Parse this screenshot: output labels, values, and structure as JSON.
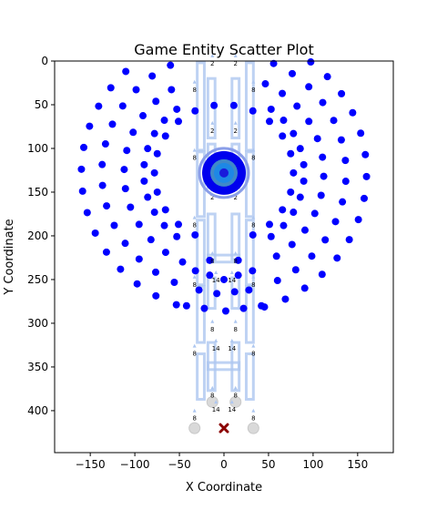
{
  "chart_data": {
    "type": "scatter",
    "title": "Game Entity Scatter Plot",
    "xlabel": "X Coordinate",
    "ylabel": "Y Coordinate",
    "xlim": [
      -190,
      190
    ],
    "ylim": [
      448,
      0
    ],
    "y_inverted": true,
    "x_ticks": [
      -150,
      -100,
      -50,
      0,
      50,
      100,
      150
    ],
    "y_ticks": [
      0,
      50,
      100,
      150,
      200,
      250,
      300,
      350,
      400
    ],
    "grid": false,
    "colors": {
      "entity": "#0000ff",
      "platform": "#aec7f0",
      "player_outer": "#8a9ee8",
      "player_fill": "#0000ee",
      "player_mid": "#3f88c8",
      "player_inner": "#1e88e5",
      "player_core": "#1a1adb",
      "ghost": "#d9d9d9",
      "cross": "#8b0000"
    },
    "rings": [
      {
        "center": [
          0,
          128
        ],
        "radius": 160,
        "count": 40,
        "start_angle": 1.5
      },
      {
        "center": [
          0,
          128
        ],
        "radius": 137,
        "count": 36,
        "start_angle": 4
      },
      {
        "center": [
          0,
          128
        ],
        "radius": 112,
        "count": 32,
        "start_angle": 2
      },
      {
        "center": [
          0,
          128
        ],
        "radius": 90,
        "count": 30,
        "start_angle": 6
      },
      {
        "center": [
          0,
          128
        ],
        "radius": 78,
        "count": 22,
        "start_angle": 0
      }
    ],
    "lower_dots": [
      {
        "x": -32,
        "y": 240
      },
      {
        "x": -16,
        "y": 245
      },
      {
        "x": 0,
        "y": 250
      },
      {
        "x": 16,
        "y": 245
      },
      {
        "x": 32,
        "y": 240
      },
      {
        "x": -28,
        "y": 262
      },
      {
        "x": -8,
        "y": 266
      },
      {
        "x": 12,
        "y": 264
      },
      {
        "x": 28,
        "y": 262
      },
      {
        "x": -42,
        "y": 280
      },
      {
        "x": -22,
        "y": 283
      },
      {
        "x": 2,
        "y": 286
      },
      {
        "x": 22,
        "y": 283
      },
      {
        "x": 42,
        "y": 280
      },
      {
        "x": -16,
        "y": 228
      },
      {
        "x": 16,
        "y": 228
      }
    ],
    "platforms": [
      {
        "x": -30,
        "y": 2,
        "w": 8,
        "h": 100
      },
      {
        "x": 25,
        "y": 2,
        "w": 8,
        "h": 100
      },
      {
        "x": -30,
        "y": 104,
        "w": 8,
        "h": 74
      },
      {
        "x": 25,
        "y": 104,
        "w": 8,
        "h": 74
      },
      {
        "x": -30,
        "y": 182,
        "w": 8,
        "h": 74
      },
      {
        "x": 25,
        "y": 182,
        "w": 8,
        "h": 74
      },
      {
        "x": -30,
        "y": 258,
        "w": 8,
        "h": 64
      },
      {
        "x": 25,
        "y": 258,
        "w": 8,
        "h": 64
      },
      {
        "x": -30,
        "y": 335,
        "w": 8,
        "h": 52
      },
      {
        "x": 25,
        "y": 335,
        "w": 8,
        "h": 52
      },
      {
        "x": -18,
        "y": 20,
        "w": 8,
        "h": 68
      },
      {
        "x": 9,
        "y": 20,
        "w": 8,
        "h": 68
      },
      {
        "x": -18,
        "y": 95,
        "w": 8,
        "h": 50
      },
      {
        "x": 9,
        "y": 95,
        "w": 8,
        "h": 50
      },
      {
        "x": -18,
        "y": 175,
        "w": 8,
        "h": 52
      },
      {
        "x": 9,
        "y": 175,
        "w": 8,
        "h": 52
      },
      {
        "x": -18,
        "y": 248,
        "w": 8,
        "h": 35
      },
      {
        "x": 9,
        "y": 248,
        "w": 8,
        "h": 35
      },
      {
        "x": -18,
        "y": 322,
        "w": 8,
        "h": 55
      },
      {
        "x": 9,
        "y": 322,
        "w": 8,
        "h": 55
      },
      {
        "x": -18,
        "y": 345,
        "w": 35,
        "h": 8
      },
      {
        "x": -18,
        "y": 222,
        "w": 35,
        "h": 8
      }
    ],
    "labels": [
      {
        "x": -13,
        "y": 0,
        "text": "2"
      },
      {
        "x": 13,
        "y": 0,
        "text": "2"
      },
      {
        "x": -33,
        "y": 30,
        "text": "8"
      },
      {
        "x": 33,
        "y": 30,
        "text": "8"
      },
      {
        "x": -13,
        "y": 77,
        "text": "2"
      },
      {
        "x": 13,
        "y": 77,
        "text": "2"
      },
      {
        "x": -33,
        "y": 108,
        "text": "8"
      },
      {
        "x": 33,
        "y": 108,
        "text": "8"
      },
      {
        "x": -13,
        "y": 153,
        "text": "2"
      },
      {
        "x": 13,
        "y": 153,
        "text": "2"
      },
      {
        "x": -33,
        "y": 185,
        "text": "8"
      },
      {
        "x": 33,
        "y": 185,
        "text": "8"
      },
      {
        "x": -13,
        "y": 226,
        "text": "8"
      },
      {
        "x": 13,
        "y": 226,
        "text": "8"
      },
      {
        "x": -33,
        "y": 253,
        "text": "8"
      },
      {
        "x": 33,
        "y": 253,
        "text": "8"
      },
      {
        "x": -9,
        "y": 248,
        "text": "14"
      },
      {
        "x": 9,
        "y": 248,
        "text": "14"
      },
      {
        "x": -13,
        "y": 304,
        "text": "8"
      },
      {
        "x": 13,
        "y": 304,
        "text": "8"
      },
      {
        "x": -33,
        "y": 332,
        "text": "8"
      },
      {
        "x": 33,
        "y": 332,
        "text": "8"
      },
      {
        "x": -9,
        "y": 326,
        "text": "14"
      },
      {
        "x": 9,
        "y": 326,
        "text": "14"
      },
      {
        "x": -13,
        "y": 380,
        "text": "8"
      },
      {
        "x": 13,
        "y": 380,
        "text": "8"
      },
      {
        "x": -33,
        "y": 406,
        "text": "8"
      },
      {
        "x": 33,
        "y": 406,
        "text": "8"
      },
      {
        "x": -9,
        "y": 396,
        "text": "14"
      },
      {
        "x": 9,
        "y": 396,
        "text": "14"
      }
    ],
    "ghost_circles": [
      {
        "x": -33,
        "y": 420
      },
      {
        "x": 33,
        "y": 420
      },
      {
        "x": -13,
        "y": 390
      },
      {
        "x": 13,
        "y": 390
      }
    ],
    "player": {
      "x": 0,
      "y": 128
    },
    "target": {
      "x": 0,
      "y": 420
    }
  }
}
